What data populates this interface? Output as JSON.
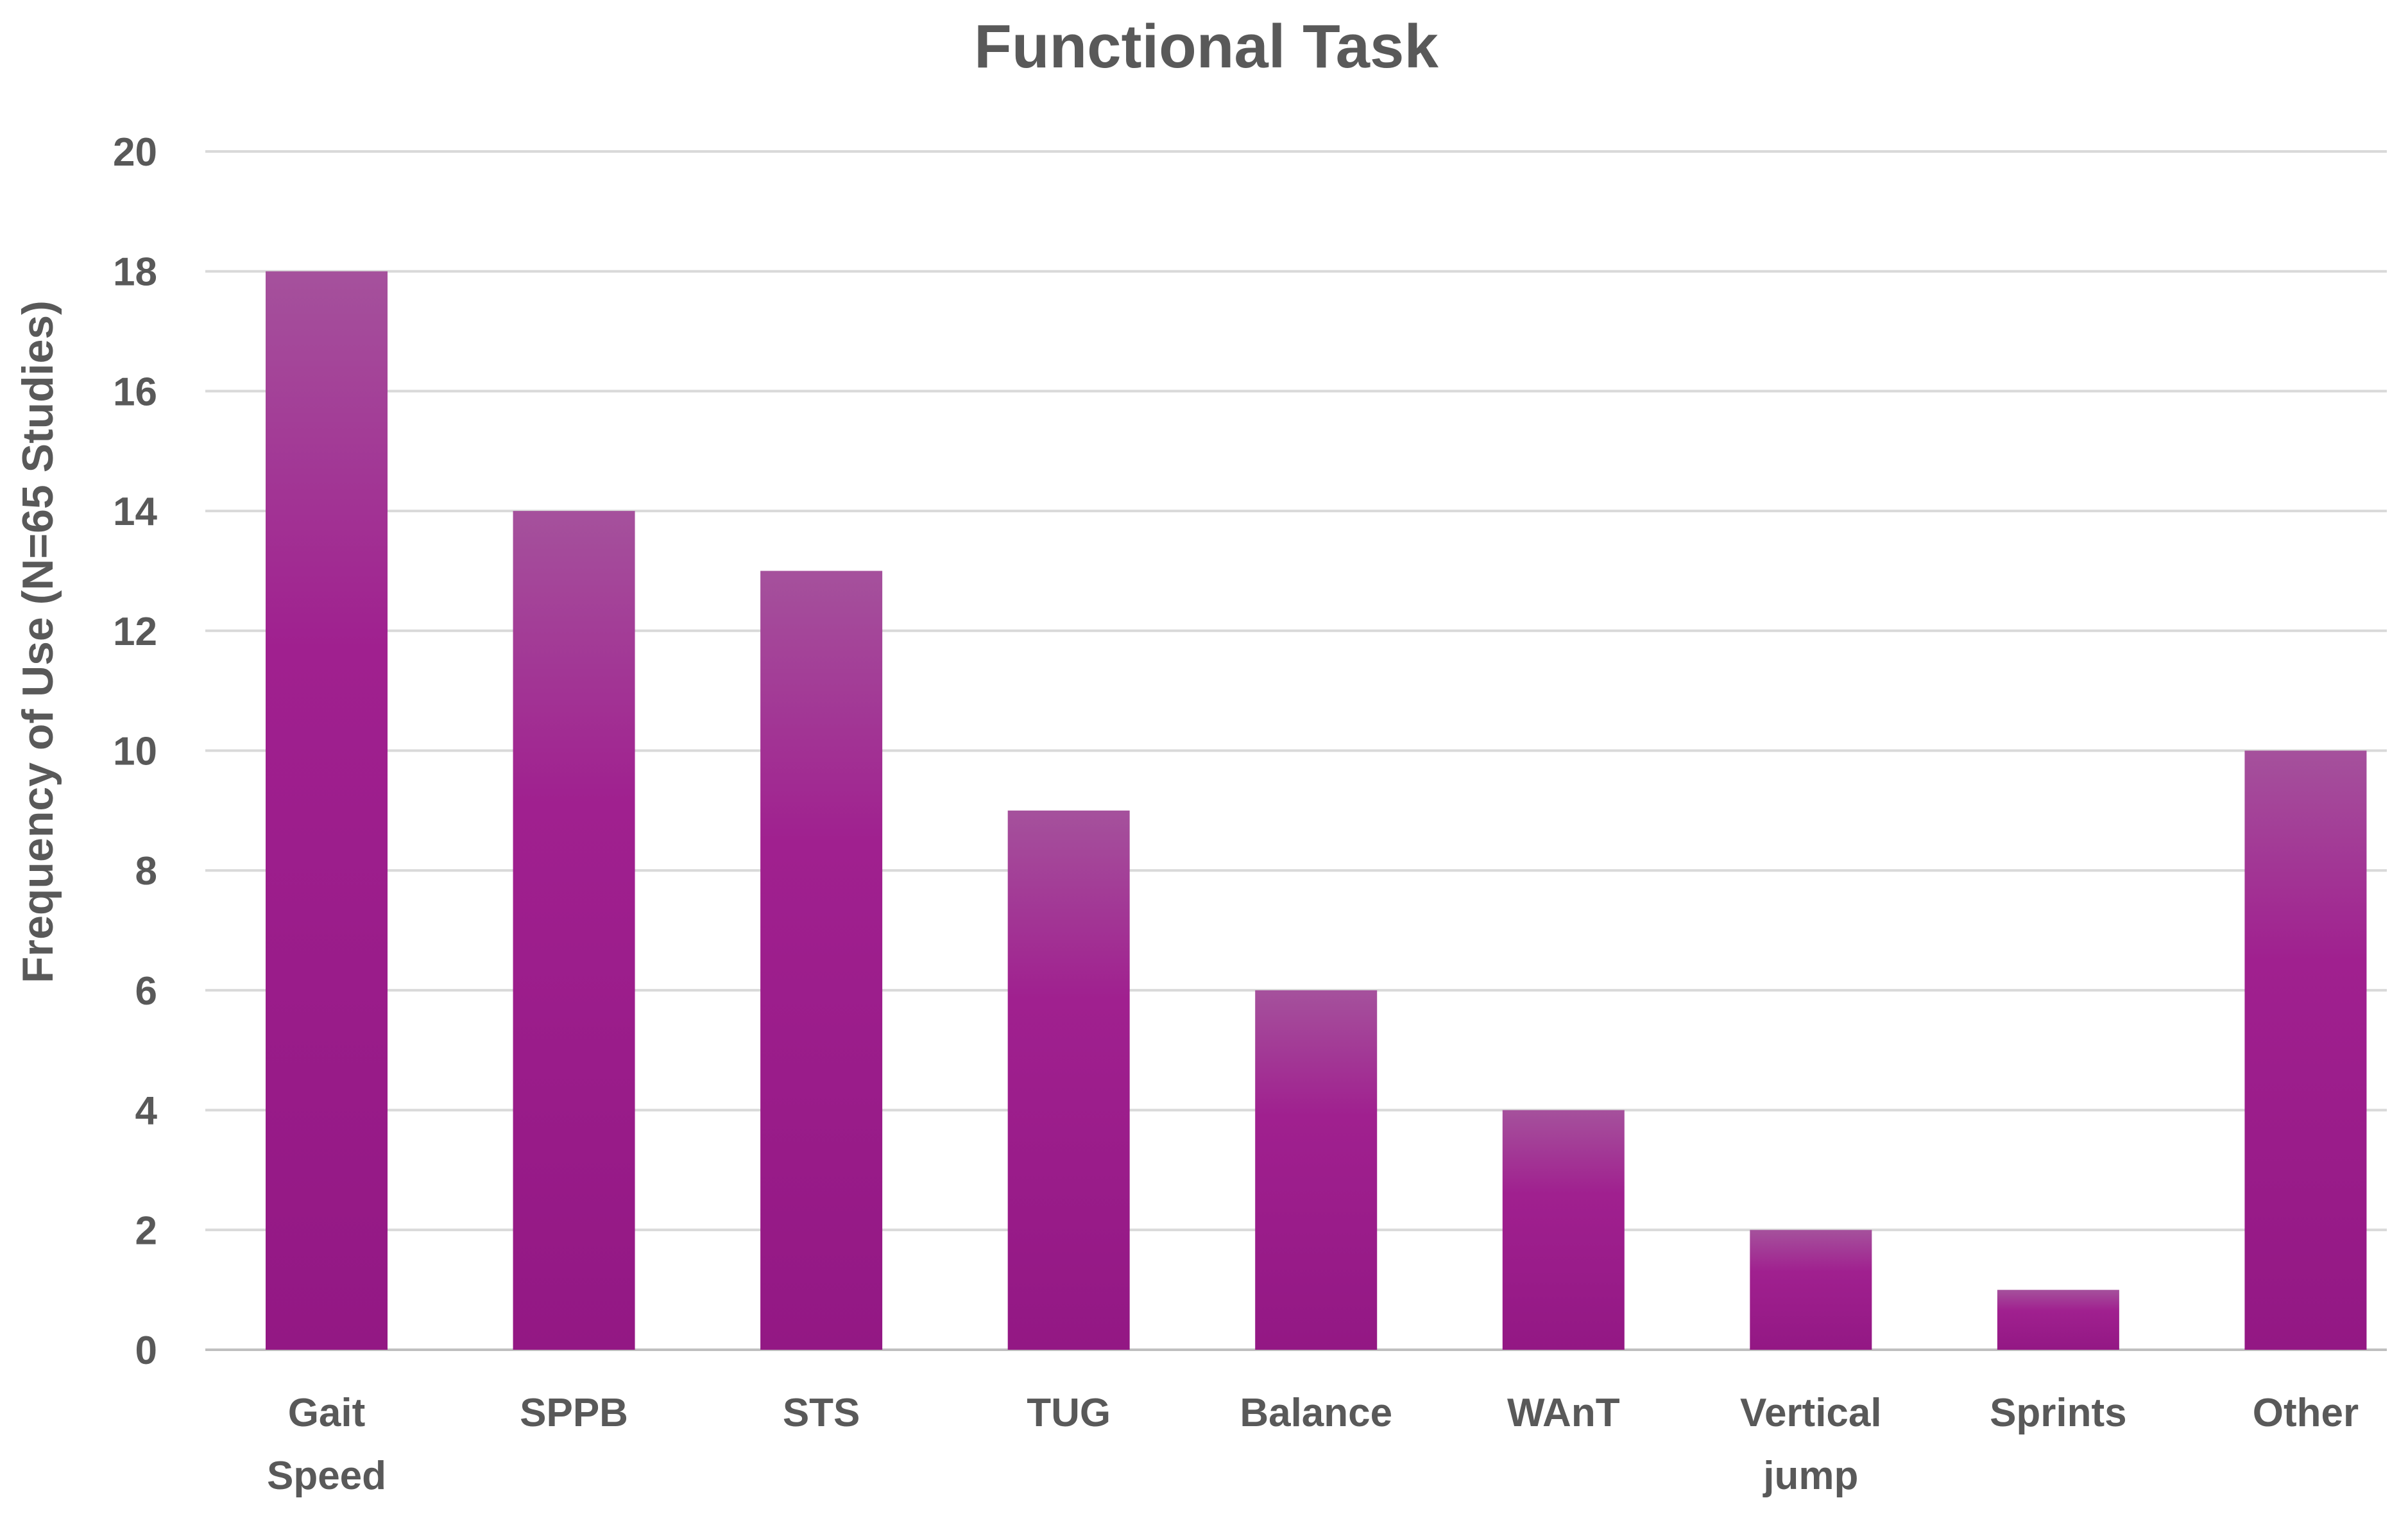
{
  "chart_data": {
    "type": "bar",
    "title": "Functional Task",
    "xlabel": "",
    "ylabel": "Frequency of Use (N=65 Studies)",
    "categories": [
      [
        "Gait",
        "Speed"
      ],
      [
        "SPPB"
      ],
      [
        "STS"
      ],
      [
        "TUG"
      ],
      [
        "Balance"
      ],
      [
        "WAnT"
      ],
      [
        "Vertical",
        "jump"
      ],
      [
        "Sprints"
      ],
      [
        "Other"
      ]
    ],
    "values": [
      18,
      14,
      13,
      9,
      6,
      4,
      2,
      1,
      10
    ],
    "ylim": [
      0,
      20
    ],
    "yticks": [
      0,
      2,
      4,
      6,
      8,
      10,
      12,
      14,
      16,
      18,
      20
    ],
    "grid": true,
    "legend": "none",
    "colors": {
      "bar_top": "#a5519c",
      "bar_mid": "#a0208f",
      "bar_bottom": "#931884",
      "text": "#595959",
      "grid": "#d9d9d9"
    }
  }
}
